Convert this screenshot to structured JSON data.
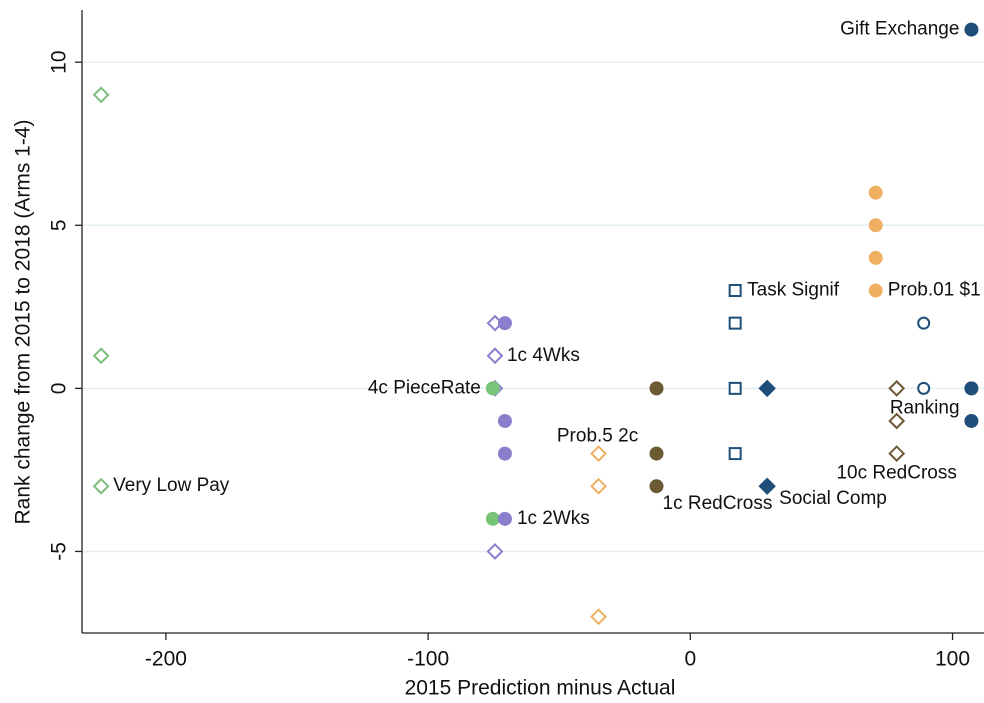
{
  "chart_data": {
    "type": "scatter",
    "x_label": "2015 Prediction minus Actual",
    "y_label": "Rank change from 2015 to 2018 (Arms 1-4)",
    "xlim": [
      -232,
      112
    ],
    "ylim": [
      -7.5,
      11.6
    ],
    "xticks": [
      -200,
      -100,
      0,
      100
    ],
    "yticks": [
      -5,
      0,
      5,
      10
    ],
    "grid": true,
    "grid_color": "#e3eef0",
    "series": [
      {
        "color": "#7cbf7c",
        "marker": "diamond",
        "filled": false,
        "x": [
          -224.7,
          -224.7,
          -224.7
        ],
        "values": [
          9,
          1,
          -3
        ],
        "point_labels": [
          null,
          null,
          "Very Low Pay"
        ]
      },
      {
        "color": "#8a7fcc",
        "marker": "diamond",
        "filled": false,
        "x": [
          -74.5,
          -74.5,
          -74.5,
          -74.5
        ],
        "values": [
          2,
          1,
          0,
          -5
        ],
        "point_labels": [
          null,
          "1c 4Wks",
          null,
          null
        ]
      },
      {
        "color": "#78c478",
        "marker": "circle",
        "filled": true,
        "x": [
          -75.3,
          -75.3
        ],
        "values": [
          0,
          -4
        ],
        "point_labels": [
          "4c PieceRate",
          null
        ]
      },
      {
        "color": "#8a7fcc",
        "marker": "circle",
        "filled": true,
        "x": [
          -70.7,
          -70.7,
          -70.7,
          -70.7
        ],
        "values": [
          2,
          -1,
          -2,
          -4
        ],
        "point_labels": [
          null,
          null,
          null,
          "1c 2Wks"
        ]
      },
      {
        "color": "#f0b062",
        "marker": "diamond",
        "filled": false,
        "x": [
          -35,
          -35,
          -35
        ],
        "values": [
          -2,
          -3,
          -7
        ],
        "point_labels": [
          "Prob.5 2c",
          null,
          null
        ]
      },
      {
        "color": "#6b5a33",
        "marker": "circle",
        "filled": true,
        "x": [
          -12.9,
          -12.9,
          -12.9
        ],
        "values": [
          0,
          -2,
          -3
        ],
        "point_labels": [
          null,
          null,
          "1c RedCross"
        ]
      },
      {
        "color": "#1f4e79",
        "marker": "square",
        "filled": false,
        "x": [
          17.1,
          17.1,
          17.1,
          17.1
        ],
        "values": [
          3,
          2,
          0,
          -2
        ],
        "point_labels": [
          "Task Signif",
          null,
          null,
          null
        ]
      },
      {
        "color": "#1f4e79",
        "marker": "diamond",
        "filled": true,
        "x": [
          29.3,
          29.3
        ],
        "values": [
          0,
          -3
        ],
        "point_labels": [
          null,
          "Social Comp"
        ]
      },
      {
        "color": "#f0b062",
        "marker": "circle",
        "filled": true,
        "x": [
          70.7,
          70.7,
          70.7,
          70.7
        ],
        "values": [
          6,
          5,
          4,
          3
        ],
        "point_labels": [
          null,
          null,
          null,
          "Prob.01 $1"
        ]
      },
      {
        "color": "#6b5a33",
        "marker": "diamond",
        "filled": false,
        "x": [
          78.7,
          78.7,
          78.7
        ],
        "values": [
          0,
          -1,
          -2
        ],
        "point_labels": [
          "Ranking",
          null,
          "10c RedCross"
        ]
      },
      {
        "color": "#1f4e79",
        "marker": "circle",
        "filled": false,
        "x": [
          89,
          89
        ],
        "values": [
          2,
          0
        ],
        "point_labels": [
          null,
          null
        ]
      },
      {
        "color": "#1f4e79",
        "marker": "circle",
        "filled": true,
        "x": [
          107.2,
          107.2,
          107.2
        ],
        "values": [
          11,
          0,
          -1
        ],
        "point_labels": [
          "Gift Exchange",
          null,
          null
        ]
      }
    ]
  }
}
